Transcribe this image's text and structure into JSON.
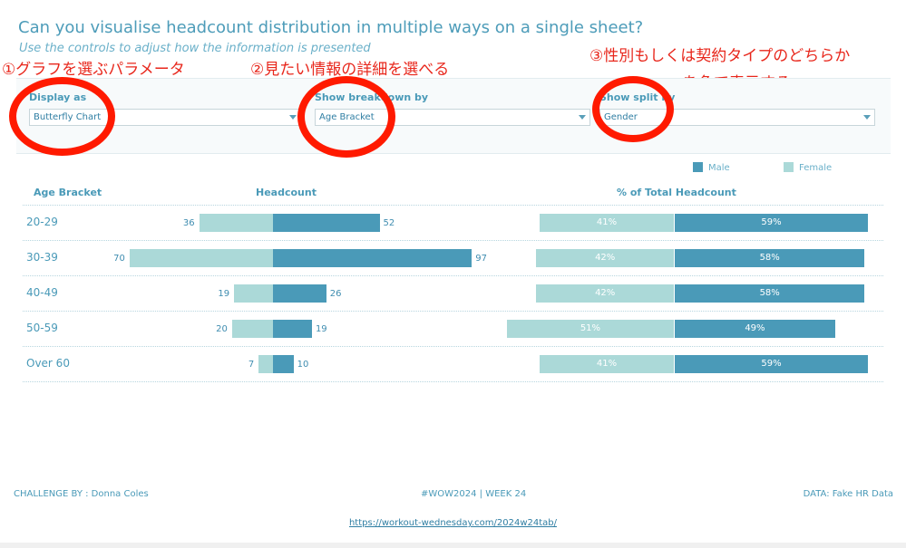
{
  "header": {
    "title": "Can you visualise headcount distribution in multiple ways on a single sheet?",
    "subtitle": "Use the controls to adjust how the information is presented"
  },
  "annotations": {
    "a1": "①グラフを選ぶパラメータ",
    "a2": "②見たい情報の詳細を選べる",
    "a3_line1": "③性別もしくは契約タイプのどちらか",
    "a3_line2": "を色で表示する"
  },
  "controls": {
    "display_as": {
      "label": "Display as",
      "value": "Butterfly Chart"
    },
    "breakdown": {
      "label": "Show breakdown by",
      "value": "Age Bracket"
    },
    "split": {
      "label": "Show split by",
      "value": "Gender"
    }
  },
  "colors": {
    "male": "#4a9ab8",
    "female": "#abd9d8",
    "annotation": "#e8271c"
  },
  "chart_data": {
    "type": "bar",
    "variant": "butterfly",
    "columns": {
      "category": "Age Bracket",
      "count": "Headcount",
      "pct": "% of Total Headcount"
    },
    "legend": [
      "Male",
      "Female"
    ],
    "categories": [
      "20-29",
      "30-39",
      "40-49",
      "50-59",
      "Over 60"
    ],
    "series": [
      {
        "name": "Female",
        "values": [
          36,
          70,
          19,
          20,
          7
        ],
        "pct": [
          41,
          42,
          42,
          51,
          41
        ],
        "pct_labels": [
          "41%",
          "42%",
          "42%",
          "51%",
          "41%"
        ]
      },
      {
        "name": "Male",
        "values": [
          52,
          97,
          26,
          19,
          10
        ],
        "pct": [
          59,
          58,
          58,
          49,
          59
        ],
        "pct_labels": [
          "59%",
          "58%",
          "58%",
          "49%",
          "59%"
        ]
      }
    ]
  },
  "footer": {
    "left": "CHALLENGE BY : Donna Coles",
    "center": "#WOW2024  |  WEEK 24",
    "right": "DATA: Fake HR Data",
    "link": "https://workout-wednesday.com/2024w24tab/"
  }
}
